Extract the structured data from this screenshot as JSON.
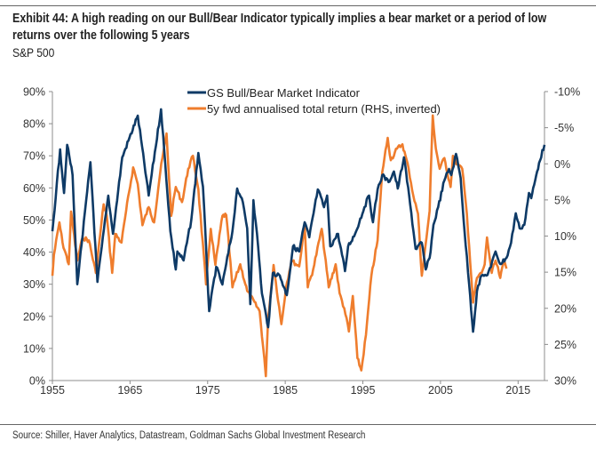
{
  "header": {
    "title_line1": "Exhibit 44: A high reading on our Bull/Bear Indicator typically implies a bear market or a period of low",
    "title_line2": "returns over the following 5 years",
    "subtitle": "S&P 500"
  },
  "footer": {
    "source": "Source: Shiller, Haver Analytics, Datastream, Goldman Sachs Global Investment Research"
  },
  "chart_data": {
    "type": "line",
    "title": "Exhibit 44: A high reading on our Bull/Bear Indicator typically implies a bear market or a period of low returns over the following 5 years",
    "subtitle": "S&P 500",
    "xlabel": "",
    "ylabel_left": "",
    "ylabel_right": "",
    "xlim": [
      1955,
      2018.4
    ],
    "x_ticks": [
      1955,
      1965,
      1975,
      1985,
      1995,
      2005,
      2015
    ],
    "x_tick_labels": [
      "1955",
      "1965",
      "1975",
      "1985",
      "1995",
      "2005",
      "2015"
    ],
    "ylim_left": [
      0,
      90
    ],
    "y_left_ticks": [
      0,
      10,
      20,
      30,
      40,
      50,
      60,
      70,
      80,
      90
    ],
    "y_left_tick_labels": [
      "0%",
      "10%",
      "20%",
      "30%",
      "40%",
      "50%",
      "60%",
      "70%",
      "80%",
      "90%"
    ],
    "ylim_right": [
      -10,
      30
    ],
    "y_right_inverted": true,
    "y_right_ticks": [
      -10,
      -5,
      0,
      5,
      10,
      15,
      20,
      25,
      30
    ],
    "y_right_tick_labels": [
      "-10%",
      "-5%",
      "0%",
      "5%",
      "10%",
      "15%",
      "20%",
      "25%",
      "30%"
    ],
    "grid": false,
    "legend_position": "top-center",
    "series": [
      {
        "name": "GS Bull/Bear Market Indicator",
        "axis": "left",
        "color": "#0e3a66",
        "x": [
          1955.0,
          1956.0,
          1956.5,
          1956.9,
          1957.6,
          1958.2,
          1959.9,
          1960.8,
          1962.2,
          1962.8,
          1964.0,
          1966.0,
          1967.4,
          1969.0,
          1970.2,
          1970.9,
          1971.1,
          1971.9,
          1972.9,
          1973.8,
          1974.4,
          1975.2,
          1976.1,
          1976.9,
          1977.4,
          1978.2,
          1978.8,
          1979.4,
          1980.1,
          1980.5,
          1980.9,
          1981.5,
          1982.0,
          1982.8,
          1983.4,
          1984.3,
          1985.2,
          1986.0,
          1986.8,
          1987.5,
          1988.1,
          1989.2,
          1990.0,
          1990.4,
          1990.8,
          1991.8,
          1992.7,
          1993.1,
          1994.0,
          1995.2,
          1995.8,
          1996.3,
          1996.9,
          1997.5,
          1998.3,
          1999.0,
          1999.5,
          2000.3,
          2001.1,
          2001.8,
          2002.6,
          2003.1,
          2003.6,
          2004.1,
          2004.7,
          2005.5,
          2006.1,
          2006.4,
          2007.0,
          2007.6,
          2008.1,
          2008.7,
          2009.2,
          2009.7,
          2010.3,
          2010.9,
          2011.5,
          2012.1,
          2012.7,
          2013.5,
          2014.1,
          2014.7,
          2015.2,
          2015.8,
          2016.4,
          2016.7,
          2017.2,
          2017.7,
          2018.4
        ],
        "values": [
          46.5,
          72,
          58.4,
          73.4,
          64,
          30,
          68,
          30.7,
          57.6,
          45.7,
          69.5,
          82.5,
          57.6,
          84.5,
          46.5,
          34.6,
          40.2,
          37.4,
          50.1,
          70.9,
          60.4,
          21.6,
          35.4,
          29.9,
          36.3,
          46.5,
          59.8,
          56.8,
          47.4,
          23.8,
          56.2,
          41.8,
          27.1,
          16.6,
          33.5,
          32.7,
          26.6,
          41.8,
          40.2,
          49.3,
          44.6,
          59.5,
          54,
          57.6,
          41.8,
          45.7,
          34.1,
          41.8,
          45.7,
          54,
          57.6,
          49.3,
          59.5,
          64,
          61.8,
          65.1,
          59.8,
          69.5,
          54.8,
          41,
          42.9,
          34.6,
          38.2,
          48.5,
          54,
          62.3,
          65.9,
          64,
          70.6,
          63.1,
          46.5,
          29.9,
          15.2,
          27.9,
          32.7,
          32.7,
          35.4,
          40.2,
          36.3,
          38.2,
          42.9,
          52.1,
          47.4,
          48.5,
          58.4,
          56.8,
          62.3,
          67.8,
          73.4
        ]
      },
      {
        "name": "5y fwd annualised total return (RHS, inverted)",
        "axis": "right",
        "color": "#ef7d2d",
        "x": [
          1955.0,
          1955.2,
          1955.9,
          1956.3,
          1957.1,
          1957.4,
          1958.2,
          1958.9,
          1959.7,
          1960.6,
          1961.6,
          1962.0,
          1962.7,
          1963.1,
          1963.9,
          1964.5,
          1965.4,
          1966.0,
          1966.6,
          1967.4,
          1968.1,
          1968.9,
          1969.7,
          1970.3,
          1970.9,
          1971.7,
          1972.5,
          1973.1,
          1973.8,
          1974.8,
          1975.4,
          1976.0,
          1976.9,
          1977.4,
          1978.2,
          1979.2,
          1980.1,
          1981.7,
          1982.3,
          1982.5,
          1982.8,
          1983.5,
          1984.5,
          1985.1,
          1985.8,
          1986.8,
          1987.5,
          1987.9,
          1988.6,
          1989.7,
          1990.6,
          1991.5,
          1992.0,
          1992.6,
          1993.2,
          1993.7,
          1994.3,
          1994.8,
          1995.4,
          1996.1,
          1996.9,
          1997.5,
          1998.2,
          1998.6,
          1999.4,
          2000.1,
          2000.9,
          2001.5,
          2002.1,
          2002.6,
          2003.2,
          2003.6,
          2004.0,
          2004.4,
          2004.9,
          2005.5,
          2006.3,
          2006.6,
          2007.2,
          2007.8,
          2008.4,
          2008.7,
          2009.2,
          2009.7,
          2010.3,
          2010.7,
          2011.0,
          2011.6,
          2012.1,
          2012.7,
          2013.2,
          2013.5
        ],
        "values": [
          15.5,
          12.6,
          8.1,
          10.9,
          13.9,
          6.6,
          13.4,
          10.2,
          10.6,
          15.1,
          5.6,
          7.2,
          15.1,
          9.7,
          10.9,
          6.5,
          0.5,
          2.8,
          8.5,
          6,
          8.1,
          1.1,
          -4.2,
          7.2,
          3.2,
          5.3,
          0.7,
          -1.1,
          3.5,
          16.7,
          9,
          14,
          7.2,
          7.1,
          17.1,
          13.9,
          17.6,
          20.4,
          26.9,
          29.4,
          21.3,
          14,
          22.2,
          17.1,
          13.4,
          14.2,
          8.5,
          17.1,
          14.6,
          9,
          17.1,
          13.9,
          17.9,
          20,
          23.2,
          18.3,
          26.9,
          28.6,
          23.7,
          15.5,
          10.6,
          1.1,
          -3.6,
          -0.5,
          -2.1,
          -2.7,
          0.7,
          4.4,
          6.9,
          15.5,
          10.2,
          6.5,
          -6.7,
          -2.1,
          0.7,
          -0.8,
          3.2,
          -1.1,
          0.1,
          0.7,
          6.9,
          11.4,
          19.2,
          15.8,
          15.1,
          13.9,
          10.2,
          15.1,
          13.4,
          15.8,
          13.4,
          14.5
        ]
      }
    ]
  }
}
